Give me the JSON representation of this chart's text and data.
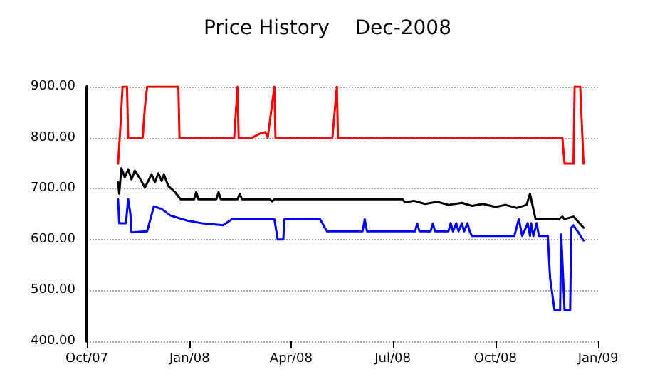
{
  "chart_data": {
    "type": "line",
    "title": "Price History    Dec-2008",
    "xlim": [
      "2007-10-01",
      "2009-01-01"
    ],
    "xticks": [
      {
        "value": "2007-10-01",
        "label": "Oct/07"
      },
      {
        "value": "2008-01-01",
        "label": "Jan/08"
      },
      {
        "value": "2008-04-01",
        "label": "Apr/08"
      },
      {
        "value": "2008-07-01",
        "label": "Jul/08"
      },
      {
        "value": "2008-10-01",
        "label": "Oct/08"
      },
      {
        "value": "2009-01-01",
        "label": "Jan/09"
      }
    ],
    "ylim": [
      400,
      900
    ],
    "yticks": [
      {
        "value": 400,
        "label": "400.00"
      },
      {
        "value": 500,
        "label": "500.00"
      },
      {
        "value": 600,
        "label": "600.00"
      },
      {
        "value": 700,
        "label": "700.00"
      },
      {
        "value": 800,
        "label": "800.00"
      },
      {
        "value": 900,
        "label": "900.00"
      }
    ],
    "grid": "y",
    "marker": "none",
    "line_style": "solid",
    "series": [
      {
        "color": "#ff0000",
        "x": [
          "2007-10-29",
          "2007-10-31",
          "2007-11-02",
          "2007-11-06",
          "2007-11-07",
          "2007-11-20",
          "2007-11-22",
          "2007-11-24",
          "2007-12-22",
          "2007-12-23",
          "2008-02-10",
          "2008-02-13",
          "2008-02-14",
          "2008-02-26",
          "2008-03-04",
          "2008-03-09",
          "2008-03-11",
          "2008-03-17",
          "2008-03-18",
          "2008-05-08",
          "2008-05-12",
          "2008-05-13",
          "2008-11-30",
          "2008-12-02",
          "2008-12-10",
          "2008-12-11",
          "2008-12-16",
          "2008-12-18",
          "2008-12-19"
        ],
        "values": [
          749,
          819,
          900,
          900,
          800,
          800,
          860,
          900,
          900,
          800,
          800,
          900,
          800,
          800,
          808,
          811,
          800,
          900,
          800,
          800,
          900,
          800,
          800,
          749,
          749,
          900,
          900,
          800,
          749
        ]
      },
      {
        "color": "#000000",
        "x": [
          "2007-10-29",
          "2007-10-30",
          "2007-11-01",
          "2007-11-04",
          "2007-11-07",
          "2007-11-10",
          "2007-11-13",
          "2007-11-17",
          "2007-11-22",
          "2007-11-28",
          "2007-12-01",
          "2007-12-04",
          "2007-12-07",
          "2007-12-09",
          "2007-12-13",
          "2007-12-19",
          "2007-12-24",
          "2008-01-05",
          "2008-01-07",
          "2008-01-09",
          "2008-01-25",
          "2008-01-27",
          "2008-01-29",
          "2008-02-13",
          "2008-02-15",
          "2008-02-17",
          "2008-03-13",
          "2008-03-15",
          "2008-03-17",
          "2008-07-10",
          "2008-07-12",
          "2008-07-20",
          "2008-07-30",
          "2008-08-10",
          "2008-08-20",
          "2008-09-01",
          "2008-09-10",
          "2008-09-20",
          "2008-10-01",
          "2008-10-10",
          "2008-10-20",
          "2008-10-29",
          "2008-11-01",
          "2008-11-06",
          "2008-11-27",
          "2008-11-30",
          "2008-12-02",
          "2008-12-10",
          "2008-12-19"
        ],
        "values": [
          712,
          690,
          740,
          722,
          738,
          718,
          735,
          722,
          702,
          728,
          712,
          730,
          715,
          728,
          705,
          693,
          679,
          679,
          693,
          679,
          679,
          693,
          679,
          679,
          690,
          679,
          679,
          675,
          679,
          679,
          673,
          676,
          670,
          674,
          668,
          672,
          666,
          670,
          664,
          668,
          662,
          668,
          690,
          640,
          640,
          645,
          640,
          645,
          623
        ]
      },
      {
        "color": "#0000ff",
        "x": [
          "2007-10-29",
          "2007-10-30",
          "2007-11-05",
          "2007-11-07",
          "2007-11-09",
          "2007-11-10",
          "2007-11-24",
          "2007-11-30",
          "2007-12-07",
          "2007-12-15",
          "2007-12-30",
          "2008-01-12",
          "2008-01-31",
          "2008-02-08",
          "2008-03-17",
          "2008-03-20",
          "2008-03-25",
          "2008-03-26",
          "2008-04-27",
          "2008-05-03",
          "2008-06-04",
          "2008-06-06",
          "2008-06-08",
          "2008-07-21",
          "2008-07-23",
          "2008-07-25",
          "2008-08-04",
          "2008-08-06",
          "2008-08-08",
          "2008-08-20",
          "2008-08-22",
          "2008-08-24",
          "2008-08-27",
          "2008-08-29",
          "2008-09-01",
          "2008-09-03",
          "2008-09-06",
          "2008-09-08",
          "2008-09-10",
          "2008-10-18",
          "2008-10-22",
          "2008-10-25",
          "2008-10-30",
          "2008-11-01",
          "2008-11-02",
          "2008-11-04",
          "2008-11-07",
          "2008-11-09",
          "2008-11-17",
          "2008-11-19",
          "2008-11-23",
          "2008-11-28",
          "2008-11-29",
          "2008-12-02",
          "2008-12-07",
          "2008-12-08",
          "2008-12-10",
          "2008-12-14",
          "2008-12-19"
        ],
        "values": [
          679,
          632,
          632,
          679,
          651,
          614,
          616,
          665,
          660,
          647,
          637,
          632,
          628,
          640,
          640,
          600,
          600,
          640,
          640,
          616,
          616,
          640,
          616,
          616,
          631,
          616,
          616,
          631,
          616,
          616,
          632,
          616,
          632,
          616,
          632,
          616,
          632,
          616,
          607,
          607,
          640,
          607,
          632,
          607,
          632,
          607,
          632,
          607,
          607,
          525,
          461,
          461,
          610,
          461,
          461,
          623,
          628,
          615,
          598
        ]
      }
    ]
  }
}
